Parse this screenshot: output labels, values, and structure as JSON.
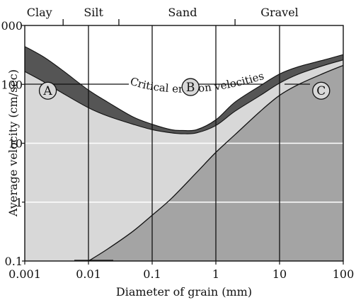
{
  "chart_data": {
    "type": "area",
    "xlabel": "Diameter of grain (mm)",
    "ylabel": "Average velocity (cm/sec)",
    "x_scale": "log",
    "y_scale": "log",
    "xlim": [
      0.001,
      100
    ],
    "ylim": [
      0.1,
      1000
    ],
    "x_ticks": [
      {
        "value": 0.001,
        "label": "0.001"
      },
      {
        "value": 0.01,
        "label": "0.01"
      },
      {
        "value": 0.1,
        "label": "0.1"
      },
      {
        "value": 1,
        "label": "1"
      },
      {
        "value": 10,
        "label": "10"
      },
      {
        "value": 100,
        "label": "100"
      }
    ],
    "y_ticks": [
      {
        "value": 0.1,
        "label": "0.1"
      },
      {
        "value": 1,
        "label": "1"
      },
      {
        "value": 10,
        "label": "10"
      },
      {
        "value": 100,
        "label": "100"
      },
      {
        "value": 1000,
        "label": "1000"
      }
    ],
    "grain_sizes": [
      {
        "label": "Clay",
        "center": 0.0017
      },
      {
        "label": "Silt",
        "center": 0.012
      },
      {
        "label": "Sand",
        "center": 0.3
      },
      {
        "label": "Gravel",
        "center": 10
      }
    ],
    "grain_boundaries": [
      0.004,
      0.03,
      2
    ],
    "series": [
      {
        "name": "Critical erosion velocities",
        "upper": {
          "x": [
            0.001,
            0.002,
            0.004,
            0.01,
            0.02,
            0.05,
            0.1,
            0.2,
            0.3,
            0.5,
            1,
            2,
            5,
            10,
            20,
            50,
            100
          ],
          "y": [
            440,
            290,
            170,
            80,
            50,
            28,
            21,
            17,
            16.5,
            17,
            25,
            50,
            95,
            150,
            200,
            260,
            320
          ]
        },
        "lower": {
          "x": [
            0.001,
            0.002,
            0.004,
            0.01,
            0.02,
            0.05,
            0.1,
            0.2,
            0.3,
            0.5,
            1,
            2,
            5,
            10,
            20,
            50,
            100
          ],
          "y": [
            165,
            110,
            70,
            40,
            29,
            21,
            17,
            15,
            14.5,
            15,
            20,
            35,
            65,
            105,
            150,
            210,
            260
          ]
        }
      },
      {
        "name": "Deposition",
        "x": [
          0.01,
          0.02,
          0.05,
          0.1,
          0.2,
          0.5,
          1,
          2,
          5,
          10,
          20,
          50,
          100
        ],
        "y": [
          0.1,
          0.16,
          0.32,
          0.6,
          1.15,
          3.2,
          7,
          14,
          35,
          65,
          100,
          155,
          210
        ]
      }
    ],
    "vertical_lines": [
      {
        "x": 0.01,
        "from": 0.1,
        "to": 1000
      },
      {
        "x": 0.1,
        "from": 0.1,
        "to": 1000
      },
      {
        "x": 1,
        "from": 0.1,
        "to": 1000
      },
      {
        "x": 10,
        "from": 0.1,
        "to": 1000
      }
    ],
    "region_labels": [
      {
        "label": "A",
        "x": 0.0023,
        "y": 78
      },
      {
        "label": "B",
        "x": 0.4,
        "y": 90
      },
      {
        "label": "C",
        "x": 45,
        "y": 78
      }
    ],
    "curve_label": {
      "text": "Critical erosion velocities"
    },
    "colors": {
      "transport": "#d8d8d8",
      "erosion_band": "#555555",
      "deposition": "#a4a4a4",
      "gridline": "#ffffff",
      "ink": "#111111"
    }
  }
}
